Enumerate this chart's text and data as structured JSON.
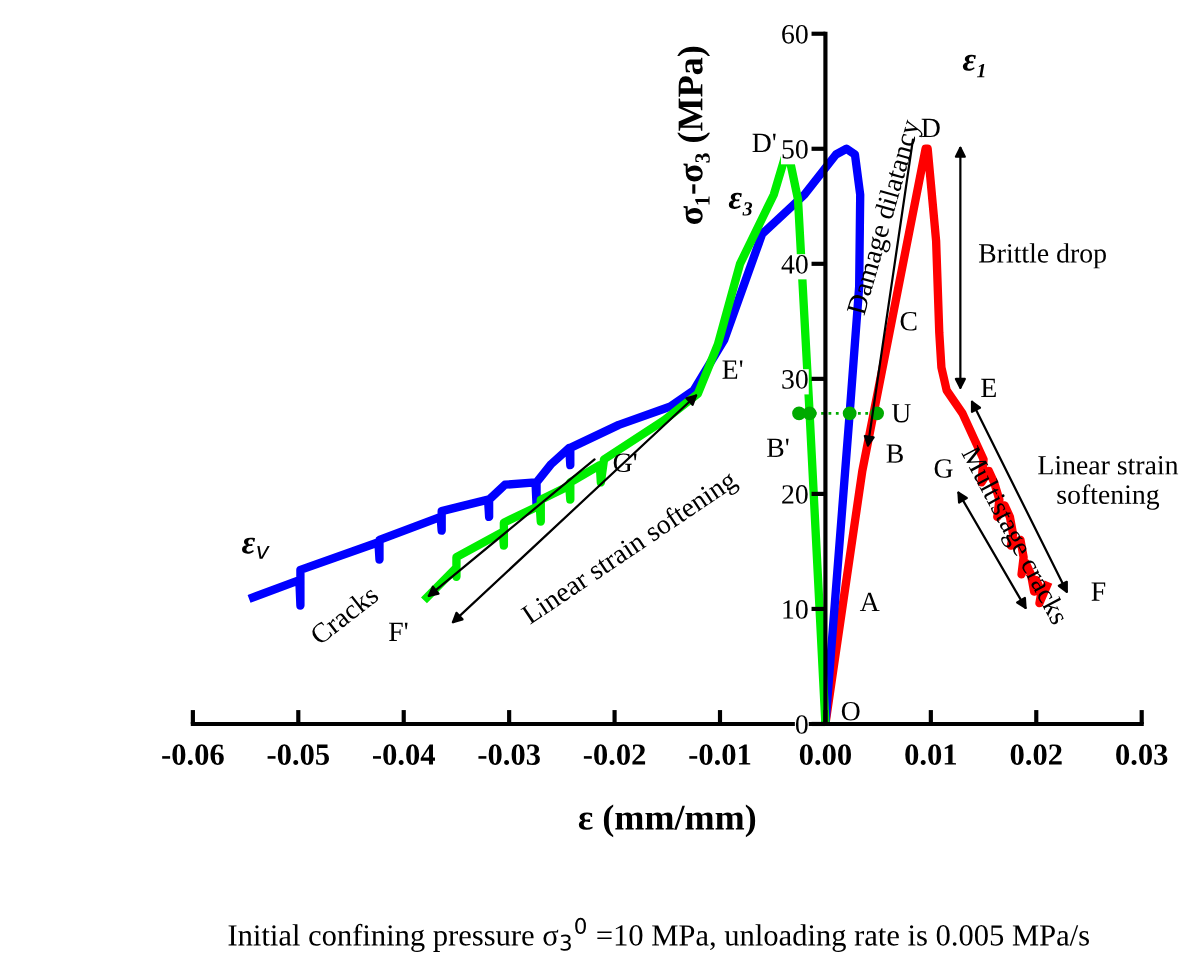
{
  "chart_data": {
    "type": "line",
    "xlabel": "ε (mm/mm)",
    "ylabel": "σ₁-σ₃ (MPa)",
    "xlim": [
      -0.06,
      0.03
    ],
    "xticks": [
      {
        "value": -0.06,
        "label": "-0.06"
      },
      {
        "value": -0.05,
        "label": "-0.05"
      },
      {
        "value": -0.04,
        "label": "-0.04"
      },
      {
        "value": -0.03,
        "label": "-0.03"
      },
      {
        "value": -0.02,
        "label": "-0.02"
      },
      {
        "value": -0.01,
        "label": "-0.01"
      },
      {
        "value": 0,
        "label": "0.00"
      },
      {
        "value": 0.01,
        "label": "0.01"
      },
      {
        "value": 0.02,
        "label": "0.02"
      },
      {
        "value": 0.03,
        "label": "0.03"
      }
    ],
    "ylim": [
      0,
      60
    ],
    "yticks": [
      0,
      10,
      20,
      30,
      40,
      50,
      60
    ],
    "grid": false,
    "legend": false,
    "line_style": "solid",
    "marker": "none",
    "series": [
      {
        "color": "#ff0000",
        "x": [
          0,
          0.0035,
          0.0095,
          0.0097,
          0.0105,
          0.0108,
          0.011,
          0.0115,
          0.013,
          0.0145,
          0.015,
          0.0148,
          0.0155,
          0.016,
          0.0165,
          0.0163,
          0.017,
          0.0175,
          0.0178,
          0.0176,
          0.0185,
          0.0188,
          0.0186,
          0.019,
          0.0195,
          0.0198,
          0.02,
          0.0205,
          0.0203,
          0.021
        ],
        "values": [
          0,
          22,
          50,
          50,
          42,
          34,
          31,
          29,
          27,
          24,
          23,
          21,
          22,
          21,
          19.5,
          18,
          19,
          18,
          16.5,
          15.5,
          16,
          14.5,
          13,
          14,
          13,
          11.5,
          12.5,
          11.5,
          10.5,
          12
        ]
      },
      {
        "color": "#0000ff",
        "x": [
          0,
          0.0023,
          0.0032,
          0.0033,
          0.0028,
          0.002,
          0.001,
          -0.002,
          -0.006,
          -0.0096,
          -0.0125,
          -0.0147,
          -0.0196,
          -0.0242,
          -0.0242,
          -0.0243,
          -0.026,
          -0.0274,
          -0.0274,
          -0.0275,
          -0.0304,
          -0.0319,
          -0.0319,
          -0.032,
          -0.0364,
          -0.0364,
          -0.0365,
          -0.0423,
          -0.0423,
          -0.0424,
          -0.0498,
          -0.0498,
          -0.0499,
          -0.0543
        ],
        "values": [
          0,
          27,
          38,
          46,
          49.5,
          50,
          49.5,
          46,
          42.6,
          33.4,
          29,
          27.6,
          26,
          24,
          22.5,
          24,
          22.6,
          21,
          19,
          21,
          20.8,
          19.5,
          18,
          19.5,
          18.5,
          16.8,
          18,
          16,
          14.3,
          15.8,
          13.4,
          10.3,
          12.5,
          11
        ]
      },
      {
        "color": "#00ee00",
        "x": [
          0,
          -0.0015,
          -0.0026,
          -0.0036,
          -0.0049,
          -0.0081,
          -0.0102,
          -0.0121,
          -0.0153,
          -0.021,
          -0.0213,
          -0.0214,
          -0.0242,
          -0.0242,
          -0.0243,
          -0.027,
          -0.027,
          -0.0271,
          -0.0305,
          -0.0305,
          -0.0306,
          -0.035,
          -0.035,
          -0.0351,
          -0.0378
        ],
        "values": [
          0,
          27,
          45.6,
          50,
          46,
          40,
          33,
          28.7,
          26.4,
          23,
          21,
          22.5,
          21,
          19.5,
          20.7,
          19.5,
          17.6,
          19,
          17.5,
          15.5,
          16.7,
          14.5,
          12.8,
          13.5,
          11
        ]
      },
      {
        "color": "#00aa00",
        "x": [
          -0.0025,
          -0.0015,
          0.0023,
          0.0049
        ],
        "values": [
          27,
          27,
          27,
          27
        ],
        "line_style": "dotted",
        "marker": "circle"
      }
    ],
    "annotations": [
      "ε₁",
      {
        "text": "D",
        "x": 0.0096,
        "y": 50
      },
      {
        "text": "Damage dilatancy",
        "x": 0.004,
        "y": 24
      },
      "C",
      "U",
      "B",
      "A",
      "O",
      "Brittle drop",
      "E",
      "Linear strain softening",
      "G",
      "Multistage cracks",
      "F",
      "D'",
      "ε₃",
      "E'",
      "B'",
      {
        "text": "G'",
        "x": -0.021,
        "y": 23
      },
      "F'",
      {
        "text": "Cracks",
        "x": -0.0378,
        "y": 11
      },
      {
        "text": "Linear strain softening",
        "x": -0.0121,
        "y": 28.7
      },
      "ε$_{v}$",
      "Initial confining pressure σ$_{3}$$^{0}$ =10 MPa, unloading rate is 0.005 MPa/s"
    ]
  }
}
